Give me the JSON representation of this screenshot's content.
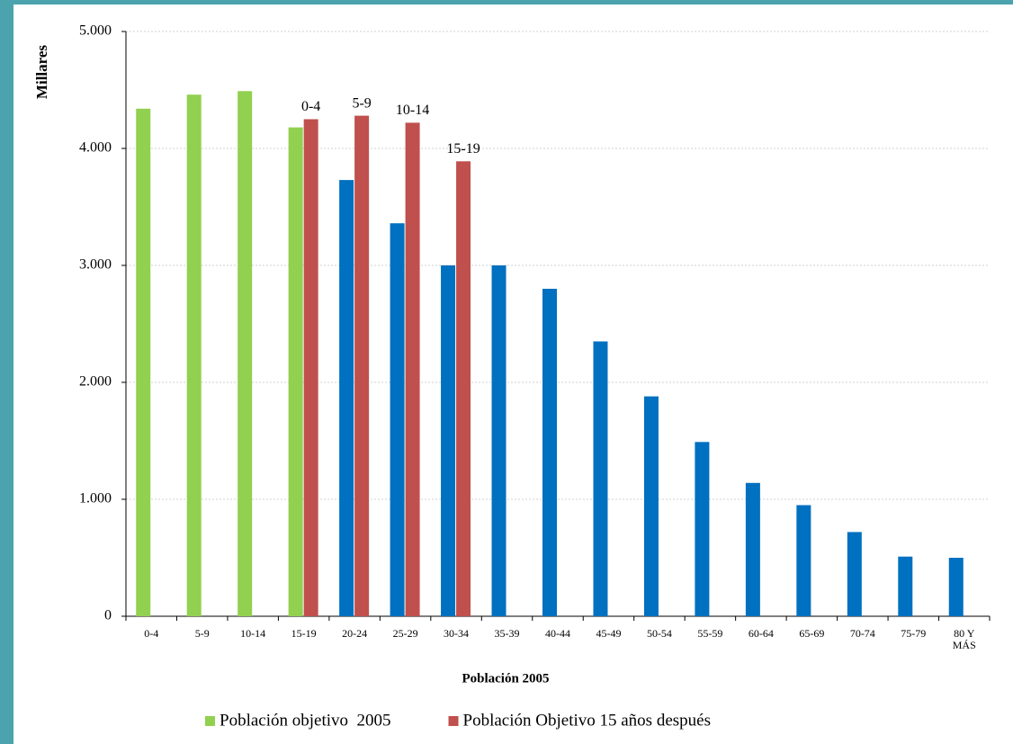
{
  "chart_data": {
    "type": "bar",
    "y_label": "Millares",
    "x_label": "Población 2005",
    "categories": [
      "0-4",
      "5-9",
      "10-14",
      "15-19",
      "20-24",
      "25-29",
      "30-34",
      "35-39",
      "40-44",
      "45-49",
      "50-54",
      "55-59",
      "60-64",
      "65-69",
      "70-74",
      "75-79",
      "80 Y\nMÁS"
    ],
    "series": [
      {
        "name": "Población objetivo  2005",
        "color": "#92d050",
        "values": [
          4340,
          4460,
          4490,
          4180,
          null,
          null,
          null,
          null,
          null,
          null,
          null,
          null,
          null,
          null,
          null,
          null,
          null
        ]
      },
      {
        "color": "#0070c0",
        "values": [
          null,
          null,
          null,
          null,
          3730,
          3360,
          3000,
          3000,
          2800,
          2350,
          1880,
          1490,
          1140,
          950,
          720,
          510,
          500
        ]
      },
      {
        "name": "Población Objetivo 15 años después",
        "color": "#c0504d",
        "values": [
          null,
          null,
          null,
          4250,
          4280,
          4220,
          3890,
          null,
          null,
          null,
          null,
          null,
          null,
          null,
          null,
          null,
          null
        ],
        "point_labels": [
          null,
          null,
          null,
          "0-4",
          "5-9",
          "10-14",
          "15-19",
          null,
          null,
          null,
          null,
          null,
          null,
          null,
          null,
          null,
          null
        ]
      }
    ],
    "ylim": [
      0,
      5000
    ],
    "yticks": [
      0,
      {
        "value": 1000,
        "label": "1.000"
      },
      {
        "value": 2000,
        "label": "2.000"
      },
      {
        "value": 3000,
        "label": "3.000"
      },
      {
        "value": 4000,
        "label": "4.000"
      },
      {
        "value": 5000,
        "label": "5.000"
      }
    ],
    "grid": true
  }
}
